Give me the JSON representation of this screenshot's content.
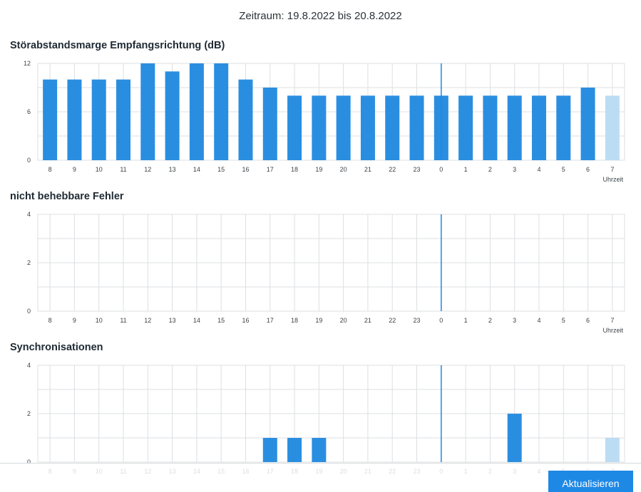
{
  "period_label": "Zeitraum: 19.8.2022 bis 20.8.2022",
  "refresh_label": "Aktualisieren",
  "colors": {
    "bar": "#2a8ee0",
    "bar_current": "#bcdcf3",
    "grid": "#dcdfe2",
    "now_line": "#1e88e5"
  },
  "chart_data": [
    {
      "type": "bar",
      "title": "Störabstandsmarge Empfangsrichtung (dB)",
      "xlabel": "Uhrzeit",
      "categories": [
        "8",
        "9",
        "10",
        "11",
        "12",
        "13",
        "14",
        "15",
        "16",
        "17",
        "18",
        "19",
        "20",
        "21",
        "22",
        "23",
        "0",
        "1",
        "2",
        "3",
        "4",
        "5",
        "6",
        "7"
      ],
      "values": [
        10,
        10,
        10,
        10,
        12,
        11,
        12,
        12,
        10,
        9,
        8,
        8,
        8,
        8,
        8,
        8,
        8,
        8,
        8,
        8,
        8,
        8,
        9,
        8
      ],
      "yticks": [
        "0",
        "6",
        "12"
      ],
      "ylim": [
        0,
        12
      ],
      "grid": true,
      "current_hour": "7",
      "day_change": "0"
    },
    {
      "type": "bar",
      "title": "nicht behebbare Fehler",
      "xlabel": "Uhrzeit",
      "categories": [
        "8",
        "9",
        "10",
        "11",
        "12",
        "13",
        "14",
        "15",
        "16",
        "17",
        "18",
        "19",
        "20",
        "21",
        "22",
        "23",
        "0",
        "1",
        "2",
        "3",
        "4",
        "5",
        "6",
        "7"
      ],
      "values": [
        0,
        0,
        0,
        0,
        0,
        0,
        0,
        0,
        0,
        0,
        0,
        0,
        0,
        0,
        0,
        0,
        0,
        0,
        0,
        0,
        0,
        0,
        0,
        0
      ],
      "yticks": [
        "0",
        "2",
        "4"
      ],
      "ylim": [
        0,
        4
      ],
      "grid": true,
      "current_hour": "7",
      "day_change": "0"
    },
    {
      "type": "bar",
      "title": "Synchronisationen",
      "xlabel": "",
      "categories": [
        "8",
        "9",
        "10",
        "11",
        "12",
        "13",
        "14",
        "15",
        "16",
        "17",
        "18",
        "19",
        "20",
        "21",
        "22",
        "23",
        "0",
        "1",
        "2",
        "3",
        "4",
        "5",
        "6",
        "7"
      ],
      "values": [
        0,
        0,
        0,
        0,
        0,
        0,
        0,
        0,
        0,
        1,
        1,
        1,
        0,
        0,
        0,
        0,
        0,
        0,
        0,
        2,
        0,
        0,
        0,
        1
      ],
      "yticks": [
        "0",
        "2",
        "4"
      ],
      "ylim": [
        0,
        4
      ],
      "grid": true,
      "current_hour": "7",
      "day_change": "0"
    }
  ]
}
